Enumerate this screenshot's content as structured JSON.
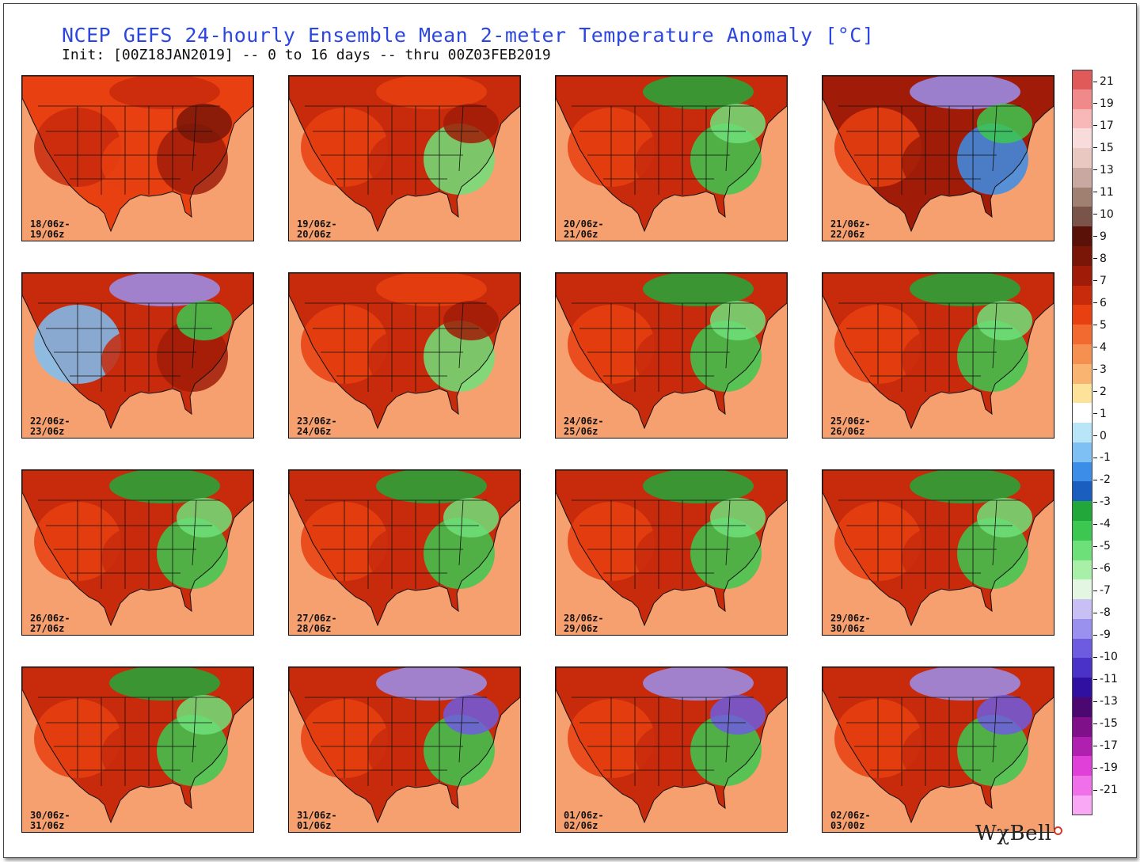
{
  "header": {
    "title": "NCEP GEFS 24-hourly Ensemble Mean 2-meter Temperature Anomaly [°C]",
    "subtitle": "Init: [00Z18JAN2019] -- 0 to 16 days -- thru 00Z03FEB2019"
  },
  "panels": [
    {
      "line1": "18/06z-",
      "line2": "19/06z",
      "pattern": "warm"
    },
    {
      "line1": "19/06z-",
      "line2": "20/06z",
      "pattern": "warm-east"
    },
    {
      "line1": "20/06z-",
      "line2": "21/06z",
      "pattern": "west-warm-east-cold"
    },
    {
      "line1": "21/06z-",
      "line2": "22/06z",
      "pattern": "central-warm"
    },
    {
      "line1": "22/06z-",
      "line2": "23/06z",
      "pattern": "warm-cold-mix"
    },
    {
      "line1": "23/06z-",
      "line2": "24/06z",
      "pattern": "warm-east"
    },
    {
      "line1": "24/06z-",
      "line2": "25/06z",
      "pattern": "west-warm-east-cold"
    },
    {
      "line1": "25/06z-",
      "line2": "26/06z",
      "pattern": "west-warm-east-cold"
    },
    {
      "line1": "26/06z-",
      "line2": "27/06z",
      "pattern": "west-warm-east-cold"
    },
    {
      "line1": "27/06z-",
      "line2": "28/06z",
      "pattern": "west-warm-east-cold"
    },
    {
      "line1": "28/06z-",
      "line2": "29/06z",
      "pattern": "west-warm-east-cold"
    },
    {
      "line1": "29/06z-",
      "line2": "30/06z",
      "pattern": "west-warm-east-cold"
    },
    {
      "line1": "30/06z-",
      "line2": "31/06z",
      "pattern": "west-warm-east-cold"
    },
    {
      "line1": "31/06z-",
      "line2": "01/06z",
      "pattern": "west-warm-east-very-cold"
    },
    {
      "line1": "01/06z-",
      "line2": "02/06z",
      "pattern": "west-warm-east-very-cold"
    },
    {
      "line1": "02/06z-",
      "line2": "03/00z",
      "pattern": "west-warm-east-very-cold"
    }
  ],
  "colorbar": {
    "bins": [
      {
        "label": "21",
        "color": "#e05a5a"
      },
      {
        "label": "19",
        "color": "#f08a8a"
      },
      {
        "label": "17",
        "color": "#f8b8b8"
      },
      {
        "label": "15",
        "color": "#f8dcdc"
      },
      {
        "label": "13",
        "color": "#e8c8c0"
      },
      {
        "label": "11",
        "color": "#c8a8a0"
      },
      {
        "label": "10",
        "color": "#a08070"
      },
      {
        "label": "9",
        "color": "#7a5448"
      },
      {
        "label": "8",
        "color": "#5a1208"
      },
      {
        "label": "7",
        "color": "#7a1608"
      },
      {
        "label": "6",
        "color": "#a01c08"
      },
      {
        "label": "5",
        "color": "#c82a0c"
      },
      {
        "label": "4",
        "color": "#e84010"
      },
      {
        "label": "3",
        "color": "#f26a30"
      },
      {
        "label": "2",
        "color": "#f69050"
      },
      {
        "label": "1",
        "color": "#fab472"
      },
      {
        "label": "0",
        "color": "#fde39a"
      },
      {
        "label": "-1",
        "color": "#ffffff"
      },
      {
        "label": "-2",
        "color": "#b8e6f8"
      },
      {
        "label": "-3",
        "color": "#7ec0f4"
      },
      {
        "label": "-4",
        "color": "#3c8de8"
      },
      {
        "label": "-5",
        "color": "#1a5ec0"
      },
      {
        "label": "-6",
        "color": "#22a83a"
      },
      {
        "label": "-7",
        "color": "#3cc850"
      },
      {
        "label": "-8",
        "color": "#6ee07a"
      },
      {
        "label": "-9",
        "color": "#a8f0a8"
      },
      {
        "label": "-10",
        "color": "#e2f6e2"
      },
      {
        "label": "-11",
        "color": "#c8c0f4"
      },
      {
        "label": "-13",
        "color": "#9a90ee"
      },
      {
        "label": "-15",
        "color": "#6e5ce0"
      },
      {
        "label": "-17",
        "color": "#4a32c8"
      },
      {
        "label": "-19",
        "color": "#3010a0"
      },
      {
        "label": "-21",
        "color": "#4a0870"
      },
      {
        "label": "",
        "color": "#80108a"
      },
      {
        "label": "",
        "color": "#b020b0"
      },
      {
        "label": "",
        "color": "#e040d8"
      },
      {
        "label": "",
        "color": "#f070ea"
      },
      {
        "label": "",
        "color": "#f8a8f4"
      }
    ],
    "tick_labels": [
      "21",
      "19",
      "17",
      "15",
      "13",
      "11",
      "10",
      "9",
      "8",
      "7",
      "6",
      "5",
      "4",
      "3",
      "2",
      "1",
      "0",
      "-1",
      "-2",
      "-3",
      "-4",
      "-5",
      "-6",
      "-7",
      "-8",
      "-9",
      "-10",
      "-11",
      "-13",
      "-15",
      "-17",
      "-19",
      "-21"
    ]
  },
  "logo": {
    "text": "WχBell"
  }
}
